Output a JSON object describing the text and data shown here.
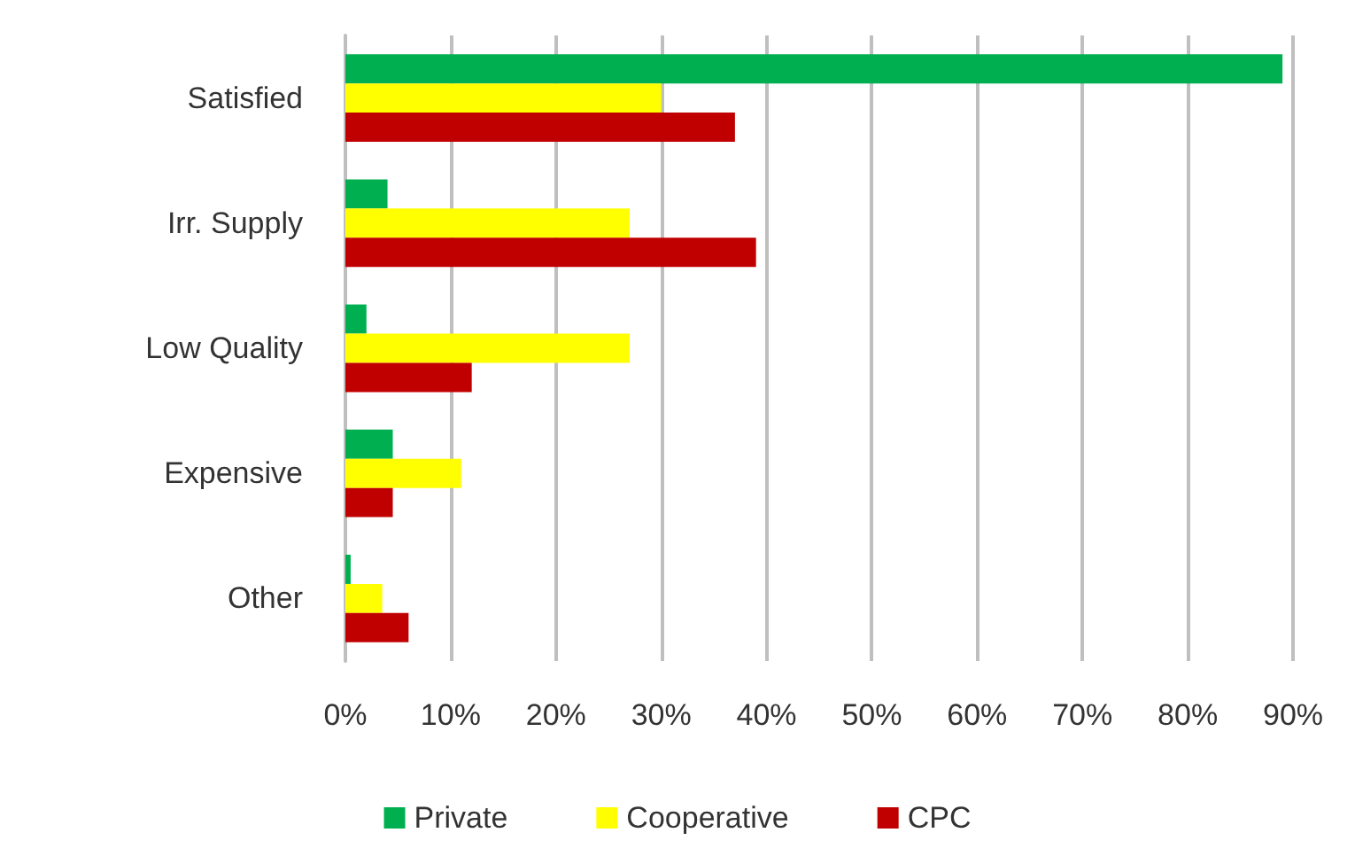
{
  "chart_data": {
    "type": "bar",
    "orientation": "horizontal",
    "categories": [
      "Satisfied",
      "Irr. Supply",
      "Low Quality",
      "Expensive",
      "Other"
    ],
    "series": [
      {
        "name": "Private",
        "color": "#00b050",
        "values": [
          89,
          4,
          2,
          4.5,
          0.5
        ]
      },
      {
        "name": "Cooperative",
        "color": "#ffff00",
        "values": [
          30,
          27,
          27,
          11,
          3.5
        ]
      },
      {
        "name": "CPC",
        "color": "#c00000",
        "values": [
          37,
          39,
          12,
          4.5,
          6
        ]
      }
    ],
    "xlim": [
      0,
      90
    ],
    "xticks": [
      {
        "value": 0,
        "label": "0%"
      },
      {
        "value": 10,
        "label": "10%"
      },
      {
        "value": 20,
        "label": "20%"
      },
      {
        "value": 30,
        "label": "30%"
      },
      {
        "value": 40,
        "label": "40%"
      },
      {
        "value": 50,
        "label": "50%"
      },
      {
        "value": 60,
        "label": "60%"
      },
      {
        "value": 70,
        "label": "70%"
      },
      {
        "value": 80,
        "label": "80%"
      },
      {
        "value": 90,
        "label": "90%"
      }
    ],
    "grid": "x",
    "legend": "bottom"
  }
}
